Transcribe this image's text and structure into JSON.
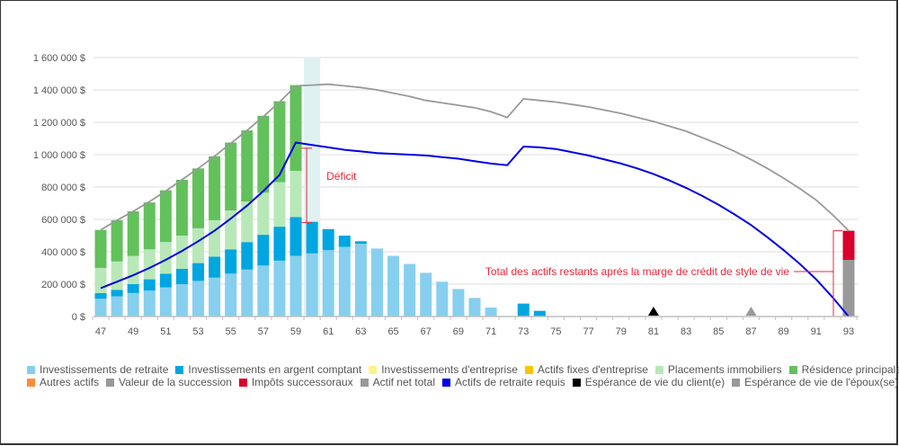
{
  "chart_data": {
    "type": "bar",
    "title": "",
    "xlabel": "",
    "ylabel": "",
    "ylim": [
      0,
      1600000
    ],
    "yticks": [
      0,
      200000,
      400000,
      600000,
      800000,
      1000000,
      1200000,
      1400000,
      1600000
    ],
    "ytick_labels": [
      "0 $",
      "200 000 $",
      "400 000 $",
      "600 000 $",
      "800 000 $",
      "1 000 000 $",
      "1 200 000 $",
      "1 400 000 $",
      "1 600 000 $"
    ],
    "x": [
      47,
      48,
      49,
      50,
      51,
      52,
      53,
      54,
      55,
      56,
      57,
      58,
      59,
      60,
      61,
      62,
      63,
      64,
      65,
      66,
      67,
      68,
      69,
      70,
      71,
      72,
      73,
      74,
      75,
      76,
      77,
      78,
      79,
      80,
      81,
      82,
      83,
      84,
      85,
      86,
      87,
      88,
      89,
      90,
      91,
      92,
      93
    ],
    "xtick_labels": [
      "47",
      "49",
      "51",
      "53",
      "55",
      "57",
      "59",
      "61",
      "63",
      "65",
      "67",
      "69",
      "71",
      "73",
      "75",
      "77",
      "79",
      "81",
      "83",
      "85",
      "87",
      "89",
      "91",
      "93"
    ],
    "grid": true,
    "highlight_age": 60,
    "series": [
      {
        "name": "Investissements de retraite",
        "kind": "bar",
        "color": "#87cfee",
        "values": [
          110000,
          125000,
          145000,
          160000,
          180000,
          200000,
          220000,
          240000,
          265000,
          290000,
          315000,
          345000,
          375000,
          390000,
          410000,
          430000,
          450000,
          420000,
          375000,
          325000,
          270000,
          215000,
          170000,
          115000,
          55000,
          0,
          0,
          0,
          0,
          0,
          0,
          0,
          0,
          0,
          0,
          0,
          0,
          0,
          0,
          0,
          0,
          0,
          0,
          0,
          0,
          0,
          0
        ]
      },
      {
        "name": "Investissements en argent comptant",
        "kind": "bar",
        "color": "#00a6e0",
        "values": [
          35000,
          40000,
          55000,
          70000,
          85000,
          95000,
          110000,
          130000,
          150000,
          170000,
          190000,
          210000,
          240000,
          195000,
          130000,
          70000,
          15000,
          0,
          0,
          0,
          0,
          0,
          0,
          0,
          0,
          0,
          80000,
          35000,
          0,
          0,
          0,
          0,
          0,
          0,
          0,
          0,
          0,
          0,
          0,
          0,
          0,
          0,
          0,
          0,
          0,
          0,
          0
        ]
      },
      {
        "name": "Investissements d'entreprise",
        "kind": "bar",
        "color": "#fff28a",
        "values": []
      },
      {
        "name": "Actifs fixes d'entreprise",
        "kind": "bar",
        "color": "#ffc400",
        "values": []
      },
      {
        "name": "Placements immobiliers",
        "kind": "bar",
        "color": "#b8e8b8",
        "values": [
          155000,
          175000,
          175000,
          185000,
          195000,
          205000,
          215000,
          225000,
          240000,
          250000,
          260000,
          275000,
          285000,
          0,
          0,
          0,
          0,
          0,
          0,
          0,
          0,
          0,
          0,
          0,
          0,
          0,
          0,
          0,
          0,
          0,
          0,
          0,
          0,
          0,
          0,
          0,
          0,
          0,
          0,
          0,
          0,
          0,
          0,
          0,
          0,
          0,
          0
        ]
      },
      {
        "name": "Résidence principale",
        "kind": "bar",
        "color": "#62c15b",
        "values": [
          235000,
          255000,
          275000,
          290000,
          320000,
          345000,
          370000,
          395000,
          420000,
          440000,
          475000,
          500000,
          530000,
          0,
          0,
          0,
          0,
          0,
          0,
          0,
          0,
          0,
          0,
          0,
          0,
          0,
          0,
          0,
          0,
          0,
          0,
          0,
          0,
          0,
          0,
          0,
          0,
          0,
          0,
          0,
          0,
          0,
          0,
          0,
          0,
          0,
          0
        ]
      },
      {
        "name": "Autres actifs",
        "kind": "bar",
        "color": "#ff8c3a",
        "values": []
      },
      {
        "name": "Valeur de la succession",
        "kind": "bar",
        "color": "#999999",
        "values_at": {
          "93": 350000
        }
      },
      {
        "name": "Impôts successoraux",
        "kind": "bar",
        "color": "#d9002b",
        "values_at": {
          "93": 180000
        }
      },
      {
        "name": "Actif net total",
        "kind": "line",
        "color": "#999999",
        "points": [
          [
            47,
            535000
          ],
          [
            48,
            595000
          ],
          [
            49,
            650000
          ],
          [
            50,
            710000
          ],
          [
            51,
            775000
          ],
          [
            52,
            845000
          ],
          [
            53,
            915000
          ],
          [
            54,
            990000
          ],
          [
            55,
            1070000
          ],
          [
            56,
            1150000
          ],
          [
            57,
            1235000
          ],
          [
            58,
            1325000
          ],
          [
            59,
            1425000
          ],
          [
            60,
            1430000
          ],
          [
            61,
            1435000
          ],
          [
            62,
            1425000
          ],
          [
            63,
            1415000
          ],
          [
            64,
            1400000
          ],
          [
            65,
            1380000
          ],
          [
            66,
            1360000
          ],
          [
            67,
            1335000
          ],
          [
            68,
            1320000
          ],
          [
            69,
            1305000
          ],
          [
            70,
            1290000
          ],
          [
            71,
            1265000
          ],
          [
            72,
            1230000
          ],
          [
            73,
            1345000
          ],
          [
            74,
            1335000
          ],
          [
            75,
            1325000
          ],
          [
            76,
            1310000
          ],
          [
            77,
            1295000
          ],
          [
            78,
            1275000
          ],
          [
            79,
            1255000
          ],
          [
            80,
            1230000
          ],
          [
            81,
            1205000
          ],
          [
            82,
            1175000
          ],
          [
            83,
            1145000
          ],
          [
            84,
            1105000
          ],
          [
            85,
            1065000
          ],
          [
            86,
            1020000
          ],
          [
            87,
            970000
          ],
          [
            88,
            915000
          ],
          [
            89,
            855000
          ],
          [
            90,
            790000
          ],
          [
            91,
            720000
          ],
          [
            92,
            630000
          ],
          [
            93,
            530000
          ]
        ]
      },
      {
        "name": "Actifs de retraite requis",
        "kind": "line",
        "color": "#0000e6",
        "points": [
          [
            47,
            175000
          ],
          [
            48,
            215000
          ],
          [
            49,
            255000
          ],
          [
            50,
            300000
          ],
          [
            51,
            350000
          ],
          [
            52,
            405000
          ],
          [
            53,
            465000
          ],
          [
            54,
            530000
          ],
          [
            55,
            605000
          ],
          [
            56,
            685000
          ],
          [
            57,
            775000
          ],
          [
            58,
            875000
          ],
          [
            59,
            1075000
          ],
          [
            60,
            1060000
          ],
          [
            61,
            1045000
          ],
          [
            62,
            1030000
          ],
          [
            63,
            1020000
          ],
          [
            64,
            1010000
          ],
          [
            65,
            1005000
          ],
          [
            66,
            1000000
          ],
          [
            67,
            995000
          ],
          [
            68,
            985000
          ],
          [
            69,
            975000
          ],
          [
            70,
            960000
          ],
          [
            71,
            945000
          ],
          [
            72,
            935000
          ],
          [
            73,
            1050000
          ],
          [
            74,
            1045000
          ],
          [
            75,
            1035000
          ],
          [
            76,
            1015000
          ],
          [
            77,
            995000
          ],
          [
            78,
            970000
          ],
          [
            79,
            945000
          ],
          [
            80,
            915000
          ],
          [
            81,
            880000
          ],
          [
            82,
            840000
          ],
          [
            83,
            795000
          ],
          [
            84,
            745000
          ],
          [
            85,
            690000
          ],
          [
            86,
            630000
          ],
          [
            87,
            565000
          ],
          [
            88,
            490000
          ],
          [
            89,
            410000
          ],
          [
            90,
            325000
          ],
          [
            91,
            230000
          ],
          [
            92,
            120000
          ],
          [
            93,
            0
          ]
        ]
      },
      {
        "name": "Espérance de vie du client(e)",
        "kind": "marker",
        "color": "#000000",
        "x": 81
      },
      {
        "name": "Espérance de vie de l'époux(se)",
        "kind": "marker",
        "color": "#999999",
        "x": 87
      }
    ],
    "annotations": [
      {
        "text": "Déficit",
        "type": "range",
        "x": 60,
        "from": 580000,
        "to": 1040000,
        "color": "#e8283a"
      },
      {
        "text": "Total des actifs restants aprés la marge de crédit de style de vie",
        "type": "bracket",
        "x": 93,
        "from": 0,
        "to": 530000,
        "color": "#e8283a"
      }
    ],
    "legend_position": "bottom"
  },
  "legend": [
    [
      {
        "label": "Investissements de retraite",
        "color": "#87cfee"
      },
      {
        "label": "Investissements en argent comptant",
        "color": "#00a6e0"
      },
      {
        "label": "Investissements d'entreprise",
        "color": "#fff28a"
      },
      {
        "label": "Actifs fixes d'entreprise",
        "color": "#ffc400"
      },
      {
        "label": "Placements immobiliers",
        "color": "#b8e8b8"
      },
      {
        "label": "Résidence principale",
        "color": "#62c15b"
      }
    ],
    [
      {
        "label": "Autres actifs",
        "color": "#ff8c3a"
      },
      {
        "label": "Valeur de la succession",
        "color": "#999999"
      },
      {
        "label": "Impôts successoraux",
        "color": "#d9002b"
      },
      {
        "label": "Actif net total",
        "color": "#999999"
      },
      {
        "label": "Actifs de retraite requis",
        "color": "#0000e6"
      },
      {
        "label": "Espérance de vie du client(e)",
        "color": "#000000"
      },
      {
        "label": "Espérance de vie de l'époux(se)",
        "color": "#999999"
      }
    ]
  ]
}
